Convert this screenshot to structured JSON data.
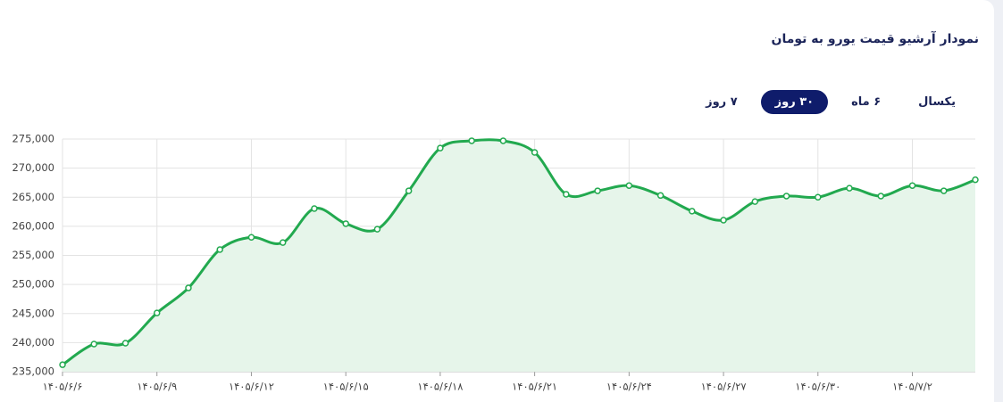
{
  "chart_data": {
    "type": "line",
    "title": "نمودار آرشیو قیمت یورو به تومان",
    "range_buttons": [
      "۷ روز",
      "۳۰ روز",
      "۶ ماه",
      "یکسال"
    ],
    "active_range": 1,
    "categories": [
      "۱۴۰۵/۶/۶",
      null,
      null,
      "۱۴۰۵/۶/۹",
      null,
      null,
      "۱۴۰۵/۶/۱۲",
      null,
      null,
      "۱۴۰۵/۶/۱۵",
      null,
      null,
      "۱۴۰۵/۶/۱۸",
      null,
      null,
      "۱۴۰۵/۶/۲۱",
      null,
      null,
      "۱۴۰۵/۶/۲۴",
      null,
      null,
      "۱۴۰۵/۶/۲۷",
      null,
      null,
      "۱۴۰۵/۶/۳۰",
      null,
      null,
      "۱۴۰۵/۷/۲",
      null,
      null
    ],
    "series": [
      {
        "name": "یورو",
        "color": "#22a94f",
        "fill": "#e6f5ea",
        "values": [
          236200,
          239750,
          239900,
          245100,
          249400,
          256000,
          258100,
          257200,
          263050,
          260450,
          259500,
          266100,
          273450,
          274700,
          274700,
          272700,
          265500,
          266100,
          267000,
          265300,
          262600,
          261050,
          264250,
          265200,
          265000,
          266550,
          265200,
          267000,
          266100,
          268000
        ]
      }
    ],
    "ylim": [
      235000,
      275000
    ],
    "yticks": [
      {
        "value": 235000,
        "label": "235,000"
      },
      {
        "value": 240000,
        "label": "240,000"
      },
      {
        "value": 245000,
        "label": "245,000"
      },
      {
        "value": 250000,
        "label": "250,000"
      },
      {
        "value": 255000,
        "label": "255,000"
      },
      {
        "value": 260000,
        "label": "260,000"
      },
      {
        "value": 265000,
        "label": "265,000"
      },
      {
        "value": 270000,
        "label": "270,000"
      },
      {
        "value": 275000,
        "label": "275,000"
      }
    ],
    "grid": true
  }
}
